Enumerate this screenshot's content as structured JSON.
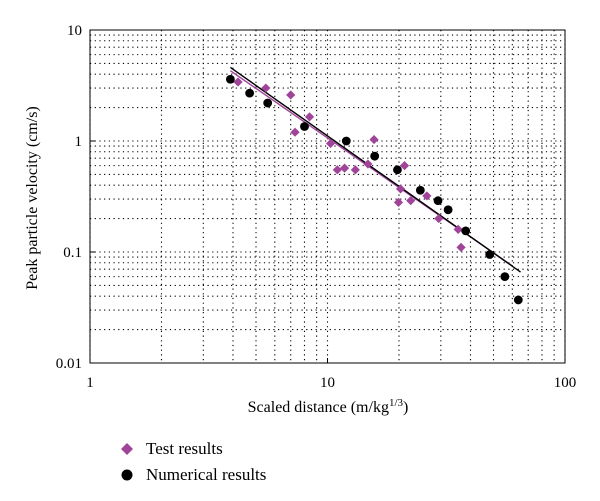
{
  "chart_data": {
    "type": "scatter",
    "xlabel_main": "Scaled distance (m/kg",
    "xlabel_exp": "1/3",
    "xlabel_tail": ")",
    "ylabel": "Peak particle velocity (cm/s)",
    "xscale": "log",
    "yscale": "log",
    "xlim": [
      1,
      100
    ],
    "ylim": [
      0.01,
      10
    ],
    "x_tick_labels": [
      "1",
      "10",
      "100"
    ],
    "y_tick_labels": [
      "0.01",
      "0.1",
      "1",
      "10"
    ],
    "grid": true,
    "legend_position": "bottom-left",
    "series": [
      {
        "name": "Test results",
        "marker": "diamond",
        "color": "#a0449a",
        "points": [
          [
            4.2,
            3.4
          ],
          [
            5.5,
            3.0
          ],
          [
            7.0,
            2.6
          ],
          [
            7.3,
            1.2
          ],
          [
            8.4,
            1.65
          ],
          [
            10.3,
            0.95
          ],
          [
            11.0,
            0.55
          ],
          [
            11.8,
            0.57
          ],
          [
            13.1,
            0.55
          ],
          [
            14.8,
            0.62
          ],
          [
            15.7,
            1.03
          ],
          [
            19.9,
            0.28
          ],
          [
            20.3,
            0.37
          ],
          [
            21.1,
            0.6
          ],
          [
            22.4,
            0.29
          ],
          [
            26.2,
            0.32
          ],
          [
            29.4,
            0.2
          ],
          [
            35.5,
            0.16
          ],
          [
            36.5,
            0.11
          ]
        ],
        "fit": [
          [
            3.9,
            4.3
          ],
          [
            60,
            0.075
          ]
        ]
      },
      {
        "name": "Numerical results",
        "marker": "circle",
        "color": "#000000",
        "points": [
          [
            3.9,
            3.6
          ],
          [
            4.7,
            2.7
          ],
          [
            5.6,
            2.2
          ],
          [
            8.0,
            1.35
          ],
          [
            12.0,
            1.0
          ],
          [
            15.8,
            0.73
          ],
          [
            19.7,
            0.55
          ],
          [
            24.6,
            0.36
          ],
          [
            29.2,
            0.29
          ],
          [
            32.2,
            0.24
          ],
          [
            38.2,
            0.155
          ],
          [
            48.2,
            0.095
          ],
          [
            55.8,
            0.06
          ],
          [
            63.6,
            0.037
          ]
        ],
        "fit": [
          [
            3.9,
            4.6
          ],
          [
            65,
            0.066
          ]
        ]
      }
    ]
  }
}
